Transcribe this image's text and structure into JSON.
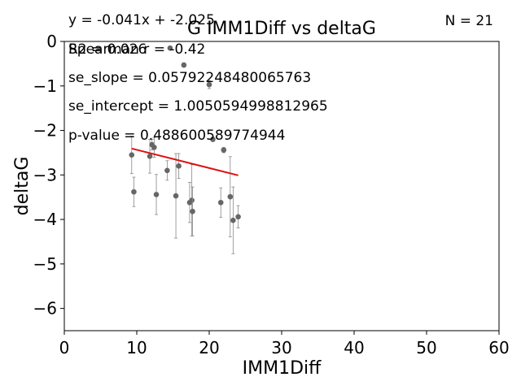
{
  "chart_data": {
    "type": "scatter",
    "title": "G IMM1Diff vs deltaG",
    "xlabel": "IMM1Diff",
    "ylabel": "deltaG",
    "xlim": [
      0,
      60
    ],
    "ylim": [
      -6.5,
      0
    ],
    "xticks": [
      0,
      10,
      20,
      30,
      40,
      50,
      60
    ],
    "yticks": [
      0,
      -1,
      -2,
      -3,
      -4,
      -5,
      -6
    ],
    "xtick_labels": [
      "0",
      "10",
      "20",
      "30",
      "40",
      "50",
      "60"
    ],
    "ytick_labels": [
      "0",
      "−1",
      "−2",
      "−3",
      "−4",
      "−5",
      "−6"
    ],
    "grid": false,
    "annotations": {
      "equation": "y = -0.041x + -2.025",
      "r2": "R2 = 0.026",
      "spearman": "Spearman r = -0.42",
      "se_slope": "se_slope = 0.05792248480065763",
      "se_intercept": "se_intercept = 1.0050594998812965",
      "p_value": "p-value = 0.488600589774944",
      "n": "N = 21"
    },
    "fit_line": {
      "slope": -0.041,
      "intercept": -2.025,
      "x_range": [
        9.3,
        24.0
      ],
      "color": "#dd1111"
    },
    "point_color": "#666666",
    "points": [
      {
        "x": 9.3,
        "y": -2.55,
        "err": 0.42
      },
      {
        "x": 9.6,
        "y": -3.38,
        "err": 0.33
      },
      {
        "x": 11.8,
        "y": -2.58,
        "err": 0.38
      },
      {
        "x": 12.1,
        "y": -2.32,
        "err": 0.12
      },
      {
        "x": 12.4,
        "y": -2.38,
        "err": 0.22
      },
      {
        "x": 12.7,
        "y": -3.44,
        "err": 0.45
      },
      {
        "x": 14.2,
        "y": -2.9,
        "err": 0.22
      },
      {
        "x": 15.4,
        "y": -3.47,
        "err": 0.95
      },
      {
        "x": 15.8,
        "y": -2.8,
        "err": 0.28
      },
      {
        "x": 16.5,
        "y": -0.53,
        "err": 0.05
      },
      {
        "x": 17.3,
        "y": -3.62,
        "err": 0.45
      },
      {
        "x": 17.6,
        "y": -3.57,
        "err": 0.8
      },
      {
        "x": 17.7,
        "y": -3.82,
        "err": 0.55
      },
      {
        "x": 20.0,
        "y": -0.97,
        "err": 0.09
      },
      {
        "x": 21.6,
        "y": -3.62,
        "err": 0.33
      },
      {
        "x": 22.0,
        "y": -2.44,
        "err": 0.06
      },
      {
        "x": 22.9,
        "y": -3.49,
        "err": 0.9
      },
      {
        "x": 23.3,
        "y": -4.02,
        "err": 0.75
      },
      {
        "x": 24.0,
        "y": -3.94,
        "err": 0.25
      },
      {
        "x": 14.6,
        "y": -0.15,
        "err": 0.02
      },
      {
        "x": 20.5,
        "y": -2.2,
        "err": 0.05
      }
    ]
  }
}
